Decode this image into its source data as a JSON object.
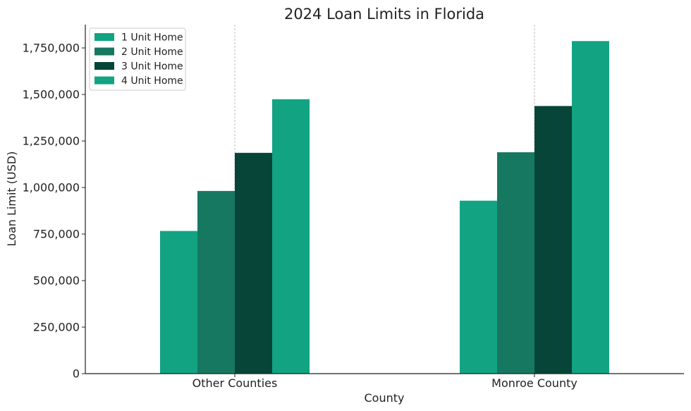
{
  "chart_data": {
    "type": "bar",
    "title": "2024 Loan Limits in Florida",
    "xlabel": "County",
    "ylabel": "Loan Limit (USD)",
    "categories": [
      "Other Counties",
      "Monroe County"
    ],
    "series": [
      {
        "name": "1 Unit Home",
        "color": "#12a382",
        "values": [
          766550,
          929200
        ]
      },
      {
        "name": "2 Unit Home",
        "color": "#177862",
        "values": [
          981500,
          1189550
        ]
      },
      {
        "name": "3 Unit Home",
        "color": "#064537",
        "values": [
          1186350,
          1437900
        ]
      },
      {
        "name": "4 Unit Home",
        "color": "#12a382",
        "values": [
          1474400,
          1786950
        ]
      }
    ],
    "ylim": [
      0,
      1875000
    ],
    "yticks": [
      0,
      250000,
      500000,
      750000,
      1000000,
      1250000,
      1500000,
      1750000
    ],
    "ytick_labels": [
      "0",
      "250,000",
      "500,000",
      "750,000",
      "1,000,000",
      "1,250,000",
      "1,500,000",
      "1,750,000"
    ],
    "legend_position": "top-left",
    "grid": "vertical dashed lines at category centers"
  }
}
